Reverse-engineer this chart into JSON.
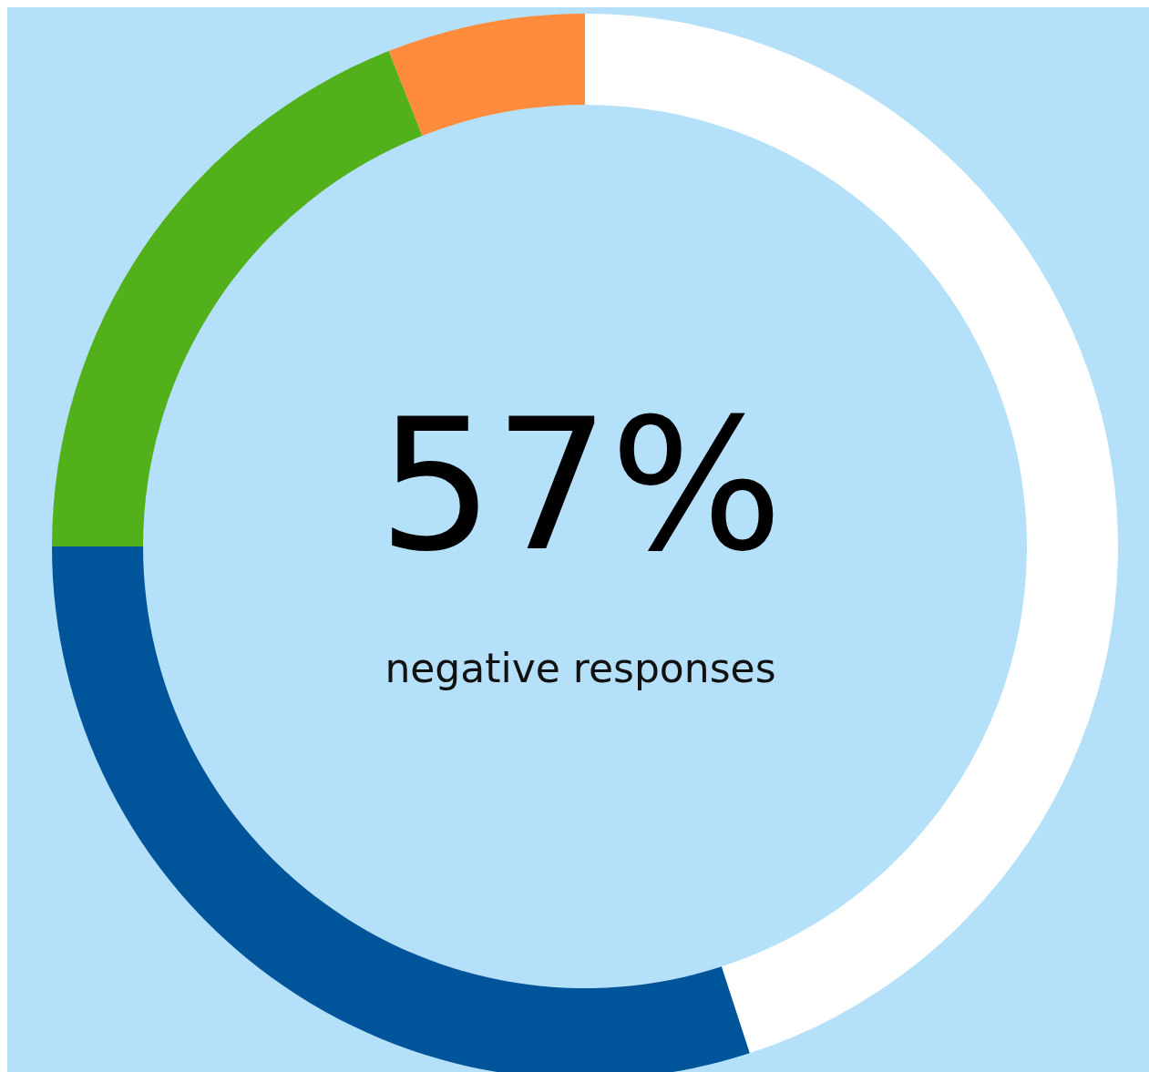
{
  "chart_data": {
    "type": "donut",
    "categories": [
      null,
      null,
      null,
      null
    ],
    "values": [
      45,
      30,
      19,
      6
    ],
    "colors": [
      "#ffffff",
      "#00549a",
      "#52b01a",
      "#ff8c3c"
    ],
    "annotations": [
      "57%",
      "negative responses"
    ]
  }
}
